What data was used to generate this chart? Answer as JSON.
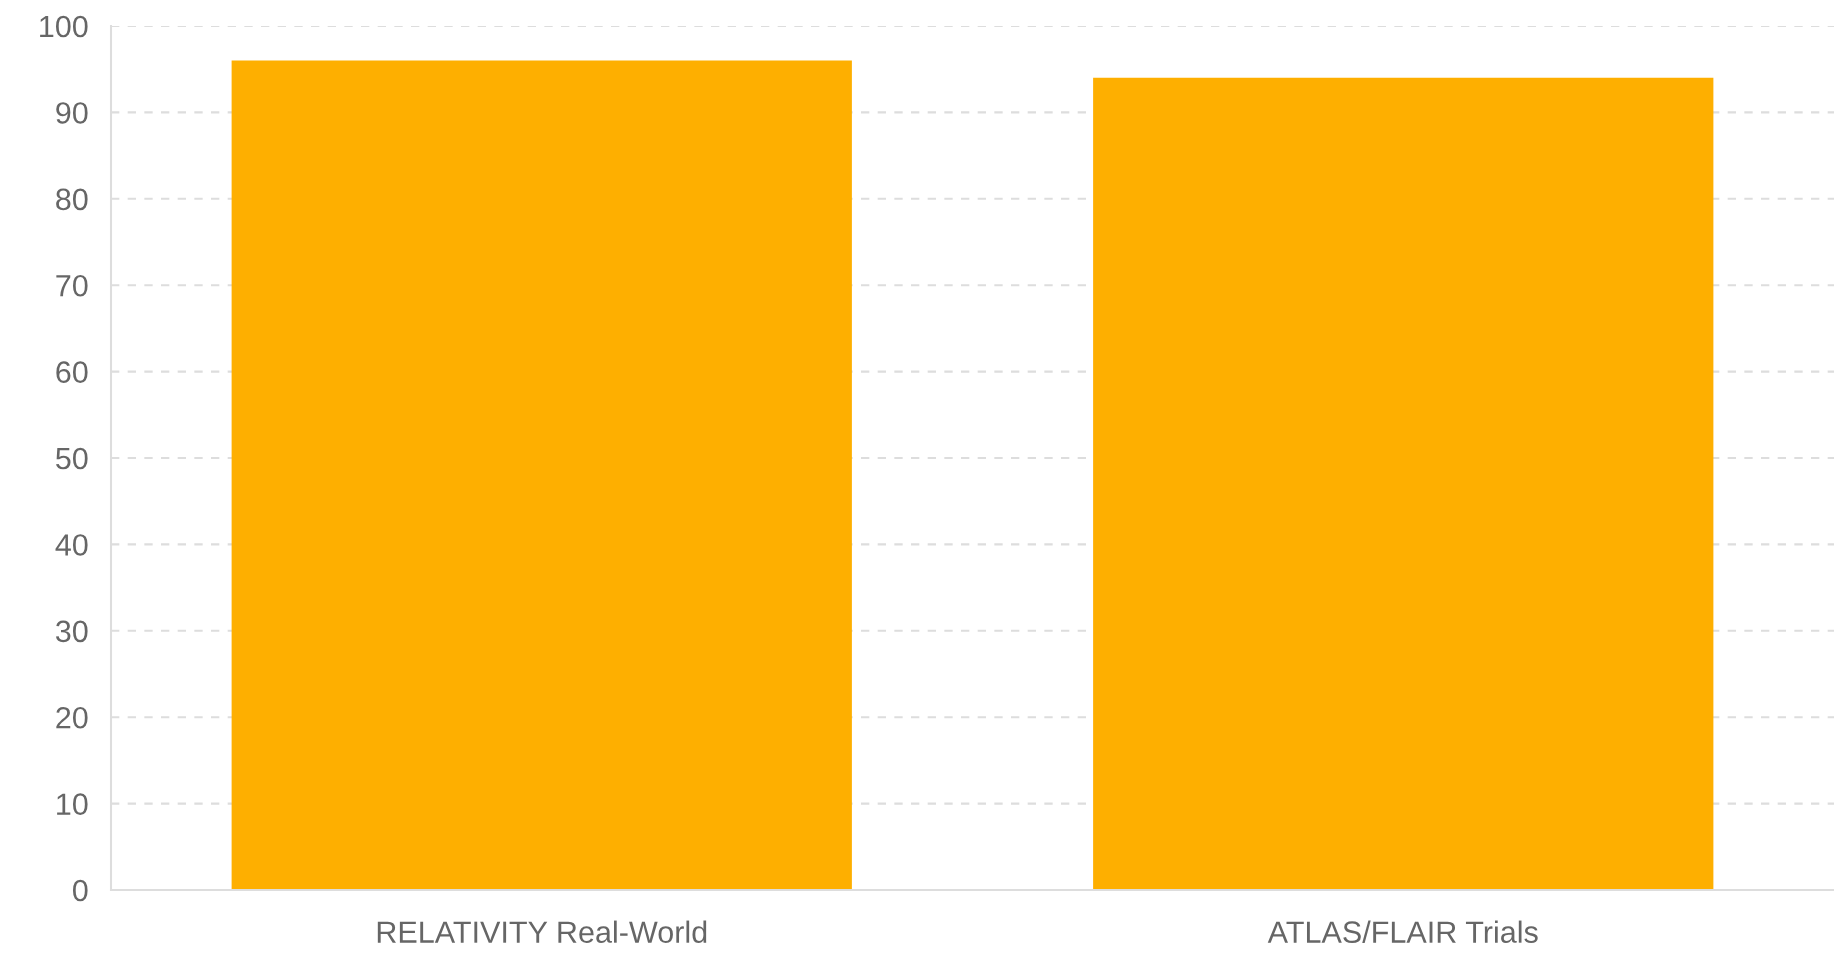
{
  "chart_data": {
    "type": "bar",
    "categories": [
      "RELATIVITY Real-World",
      "ATLAS/FLAIR Trials"
    ],
    "values": [
      96,
      94
    ],
    "color": "#feaf00",
    "ylim": [
      0,
      100
    ],
    "yticks": [
      0,
      10,
      20,
      30,
      40,
      50,
      60,
      70,
      80,
      90,
      100
    ],
    "grid": "y"
  }
}
